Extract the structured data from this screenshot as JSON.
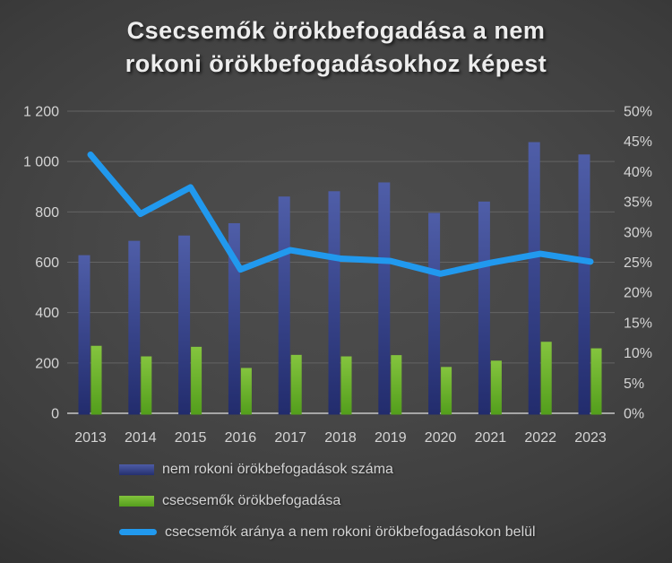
{
  "title": {
    "line1": "Csecsemők örökbefogadása a nem",
    "line2": "rokoni örökbefogadásokhoz képest"
  },
  "colors": {
    "background_center": "#4a4a4a",
    "background_edge": "#262626",
    "gridline": "#636363",
    "axis_line": "#a6a6a6",
    "tick_label": "#d4d4d4",
    "title_text": "#ededed",
    "bar_blue_top": "#4d5ca6",
    "bar_blue_bottom": "#222c6d",
    "bar_green_top": "#82c23c",
    "bar_green_bottom": "#549f1d",
    "line_blue": "#2199ee"
  },
  "legend": [
    {
      "label": "nem rokoni örökbefogadások száma",
      "swatch": "blue-bar"
    },
    {
      "label": "csecsemők örökbefogadása",
      "swatch": "green-bar"
    },
    {
      "label": "csecsemők aránya a nem rokoni örökbefogadásokon belül",
      "swatch": "blue-line"
    }
  ],
  "chart_data": {
    "type": "combo",
    "title": "Csecsemők örökbefogadása a nem rokoni örökbefogadásokhoz képest",
    "categories": [
      "2013",
      "2014",
      "2015",
      "2016",
      "2017",
      "2018",
      "2019",
      "2020",
      "2021",
      "2022",
      "2023"
    ],
    "series": [
      {
        "name": "nem rokoni örökbefogadások száma",
        "type": "bar",
        "axis": "left",
        "values": [
          628,
          685,
          706,
          755,
          861,
          882,
          917,
          796,
          841,
          1077,
          1028
        ]
      },
      {
        "name": "csecsemők örökbefogadása",
        "type": "bar",
        "axis": "left",
        "values": [
          268,
          226,
          264,
          180,
          232,
          226,
          231,
          184,
          209,
          284,
          258
        ]
      },
      {
        "name": "csecsemők aránya a nem rokoni örökbefogadásokon belül",
        "type": "line",
        "axis": "right",
        "values_pct": [
          42.8,
          33.0,
          37.4,
          23.8,
          27.0,
          25.6,
          25.2,
          23.1,
          24.9,
          26.4,
          25.1
        ]
      }
    ],
    "left_axis": {
      "min": 0,
      "max": 1200,
      "step": 200,
      "tick_labels": [
        "1 200",
        "1 000",
        "800",
        "600",
        "400",
        "200",
        "0"
      ]
    },
    "right_axis": {
      "min": 0,
      "max": 50,
      "step": 5,
      "tick_labels": [
        "50%",
        "45%",
        "40%",
        "35%",
        "30%",
        "25%",
        "20%",
        "15%",
        "10%",
        "5%",
        "0%"
      ]
    },
    "grid": true,
    "legend_position": "bottom-left"
  }
}
